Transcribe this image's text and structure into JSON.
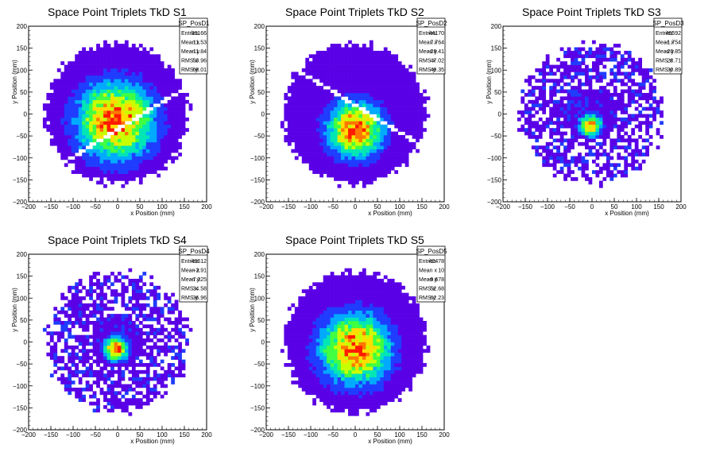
{
  "chart_data": [
    {
      "type": "heatmap",
      "title": "Space Point Triplets TkD S1",
      "xlabel": "x Position (mm)",
      "ylabel": "y Position (mm)",
      "xlim": [
        -200,
        200
      ],
      "ylim": [
        -200,
        200
      ],
      "xticks": [
        "−200",
        "−150",
        "−100",
        "−50",
        "0",
        "50",
        "100",
        "150",
        "200"
      ],
      "yticks": [
        "−200",
        "−150",
        "−100",
        "−50",
        "0",
        "50",
        "100",
        "150",
        "200"
      ],
      "stats": {
        "name": "SP_PosD1",
        "rows": [
          {
            "label": "Entries",
            "value": "33166"
          },
          {
            "label": "Mean x",
            "value": "11.53"
          },
          {
            "label": "Mean y",
            "value": "−11.84"
          },
          {
            "label": "RMS x",
            "value": "53.96"
          },
          {
            "label": "RMS y",
            "value": "68.01"
          }
        ]
      },
      "mean_x": 11.53,
      "mean_y": -11.84,
      "rms_x": 53.96,
      "rms_y": 68.01,
      "hotspot": {
        "x": -5,
        "y": -15,
        "sigma": 55
      },
      "gap_slope": 0.62,
      "gap_offset": -35,
      "colormap": [
        "#5a00e6",
        "#1f3cff",
        "#00aaff",
        "#00e6b4",
        "#40ff40",
        "#c8ff00",
        "#ffdd00",
        "#ff7700",
        "#ff1a00"
      ],
      "grid": false
    },
    {
      "type": "heatmap",
      "title": "Space Point Triplets TkD S2",
      "xlabel": "x Position (mm)",
      "ylabel": "y Position (mm)",
      "xlim": [
        -200,
        200
      ],
      "ylim": [
        -200,
        200
      ],
      "xticks": [
        "−200",
        "−150",
        "−100",
        "−50",
        "0",
        "50",
        "100",
        "150",
        "200"
      ],
      "yticks": [
        "−200",
        "−150",
        "−100",
        "−50",
        "0",
        "50",
        "100",
        "150",
        "200"
      ],
      "stats": {
        "name": "SP_PosD2",
        "rows": [
          {
            "label": "Entries",
            "value": "44170"
          },
          {
            "label": "Mean x",
            "value": "7.764"
          },
          {
            "label": "Mean y",
            "value": "−28.41"
          },
          {
            "label": "RMS x",
            "value": "47.02"
          },
          {
            "label": "RMS y",
            "value": "49.35"
          }
        ]
      },
      "mean_x": 7.764,
      "mean_y": -28.41,
      "rms_x": 47.02,
      "rms_y": 49.35,
      "hotspot": {
        "x": 0,
        "y": -35,
        "sigma": 40
      },
      "gap_slope": -0.62,
      "gap_offset": 20,
      "colormap": [
        "#5a00e6",
        "#1f3cff",
        "#00aaff",
        "#00e6b4",
        "#40ff40",
        "#c8ff00",
        "#ffdd00",
        "#ff7700",
        "#ff1a00"
      ],
      "grid": false
    },
    {
      "type": "heatmap",
      "title": "Space Point Triplets TkD S3",
      "xlabel": "x Position (mm)",
      "ylabel": "y Position (mm)",
      "xlim": [
        -200,
        200
      ],
      "ylim": [
        -200,
        200
      ],
      "xticks": [
        "−200",
        "−150",
        "−100",
        "−50",
        "0",
        "50",
        "100",
        "150",
        "200"
      ],
      "yticks": [
        "−200",
        "−150",
        "−100",
        "−50",
        "0",
        "50",
        "100",
        "150",
        "200"
      ],
      "stats": {
        "name": "SP_PosD3",
        "rows": [
          {
            "label": "Entries",
            "value": "46592"
          },
          {
            "label": "Mean x",
            "value": "−1.754"
          },
          {
            "label": "Mean y",
            "value": "−20.85"
          },
          {
            "label": "RMS x",
            "value": "28.71"
          },
          {
            "label": "RMS y",
            "value": "30.89"
          }
        ]
      },
      "mean_x": -1.754,
      "mean_y": -20.85,
      "rms_x": 28.71,
      "rms_y": 30.89,
      "hotspot": {
        "x": -3,
        "y": -25,
        "sigma": 16
      },
      "gap_slope": null,
      "gap_offset": null,
      "colormap": [
        "#5a00e6",
        "#1f3cff",
        "#00aaff",
        "#00e6b4",
        "#40ff40",
        "#c8ff00",
        "#ffdd00",
        "#ff7700",
        "#ff1a00"
      ],
      "grid": false
    },
    {
      "type": "heatmap",
      "title": "Space Point Triplets TkD S4",
      "xlabel": "x Position (mm)",
      "ylabel": "y Position (mm)",
      "xlim": [
        -200,
        200
      ],
      "ylim": [
        -200,
        200
      ],
      "xticks": [
        "−200",
        "−150",
        "−100",
        "−50",
        "0",
        "50",
        "100",
        "150",
        "200"
      ],
      "yticks": [
        "−200",
        "−150",
        "−100",
        "−50",
        "0",
        "50",
        "100",
        "150",
        "200"
      ],
      "stats": {
        "name": "SP_PosD4",
        "rows": [
          {
            "label": "Entries",
            "value": "43612"
          },
          {
            "label": "Mean x",
            "value": "−2.91"
          },
          {
            "label": "Mean y",
            "value": "−7.325"
          },
          {
            "label": "RMS x",
            "value": "34.58"
          },
          {
            "label": "RMS y",
            "value": "36.96"
          }
        ]
      },
      "mean_x": -2.91,
      "mean_y": -7.325,
      "rms_x": 34.58,
      "rms_y": 36.96,
      "hotspot": {
        "x": -3,
        "y": -15,
        "sigma": 18
      },
      "gap_slope": null,
      "gap_offset": null,
      "colormap": [
        "#5a00e6",
        "#1f3cff",
        "#00aaff",
        "#00e6b4",
        "#40ff40",
        "#c8ff00",
        "#ffdd00",
        "#ff7700",
        "#ff1a00"
      ],
      "grid": false
    },
    {
      "type": "heatmap",
      "title": "Space Point Triplets TkD S5",
      "xlabel": "x Position (mm)",
      "ylabel": "y Position (mm)",
      "xlim": [
        -200,
        200
      ],
      "ylim": [
        -200,
        200
      ],
      "xticks": [
        "−200",
        "−150",
        "−100",
        "−50",
        "0",
        "50",
        "100",
        "150",
        "200"
      ],
      "yticks": [
        "−200",
        "−150",
        "−100",
        "−50",
        "0",
        "50",
        "100",
        "150",
        "200"
      ],
      "stats": {
        "name": "SP_PosD5",
        "rows": [
          {
            "label": "Entries",
            "value": "42478"
          },
          {
            "label": "Mean x",
            "value": "10"
          },
          {
            "label": "Mean y",
            "value": "−9.678"
          },
          {
            "label": "RMS x",
            "value": "52.68"
          },
          {
            "label": "RMS y",
            "value": "62.23"
          }
        ]
      },
      "mean_x": 10,
      "mean_y": -9.678,
      "rms_x": 52.68,
      "rms_y": 62.23,
      "hotspot": {
        "x": 0,
        "y": -15,
        "sigma": 50
      },
      "gap_slope": null,
      "gap_offset": null,
      "colormap": [
        "#5a00e6",
        "#1f3cff",
        "#00aaff",
        "#00e6b4",
        "#40ff40",
        "#c8ff00",
        "#ffdd00",
        "#ff7700",
        "#ff1a00"
      ],
      "grid": false
    }
  ]
}
